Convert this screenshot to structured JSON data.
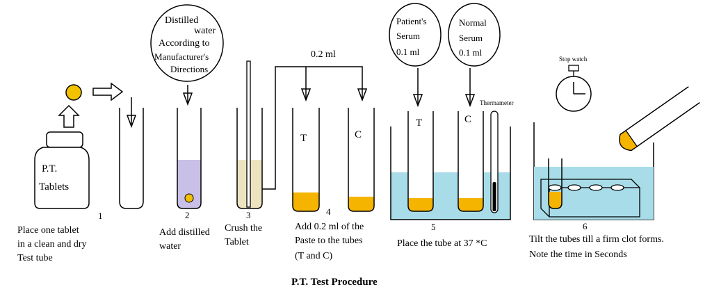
{
  "caption": "P.T. Test Procedure",
  "step1": {
    "number": "1",
    "bottle_label_line1": "P.T.",
    "bottle_label_line2": "Tablets",
    "desc_line1": "Place one tablet",
    "desc_line2": "in a clean and dry",
    "desc_line3": "Test tube"
  },
  "step2": {
    "number": "2",
    "bubble_line1": "Distilled",
    "bubble_line2": "water",
    "bubble_line3": "According  to",
    "bubble_line4": "Manufacturer's",
    "bubble_line5": "Directions",
    "desc_line1": "Add distilled",
    "desc_line2": "water"
  },
  "step3": {
    "number": "3",
    "desc_line1": "Crush the",
    "desc_line2": "Tablet"
  },
  "step4": {
    "number": "4",
    "volume_label": "0.2 ml",
    "tube_t": "T",
    "tube_c": "C",
    "desc_line1": "Add 0.2 ml of the",
    "desc_line2": "Paste to the tubes",
    "desc_line3": "(T and C)"
  },
  "step5": {
    "number": "5",
    "patient_line1": "Patient's",
    "patient_line2": "Serum",
    "patient_line3": "0.1 ml",
    "normal_line1": "Normal",
    "normal_line2": "Serum",
    "normal_line3": "0.1 ml",
    "tube_t": "T",
    "tube_c": "C",
    "thermometer_label": "Thermameter",
    "desc_line1": "Place the tube at 37 *C"
  },
  "step6": {
    "number": "6",
    "stopwatch_label": "Stop watch",
    "desc_line1": "Tilt the tubes till a firm clot forms.",
    "desc_line2": "Note the time in Seconds"
  },
  "colors": {
    "tablet": "#f2c200",
    "paste": "#f5b400",
    "water": "#c8c0e6",
    "crushed": "#ece4c0",
    "bath": "#a8dce8"
  }
}
